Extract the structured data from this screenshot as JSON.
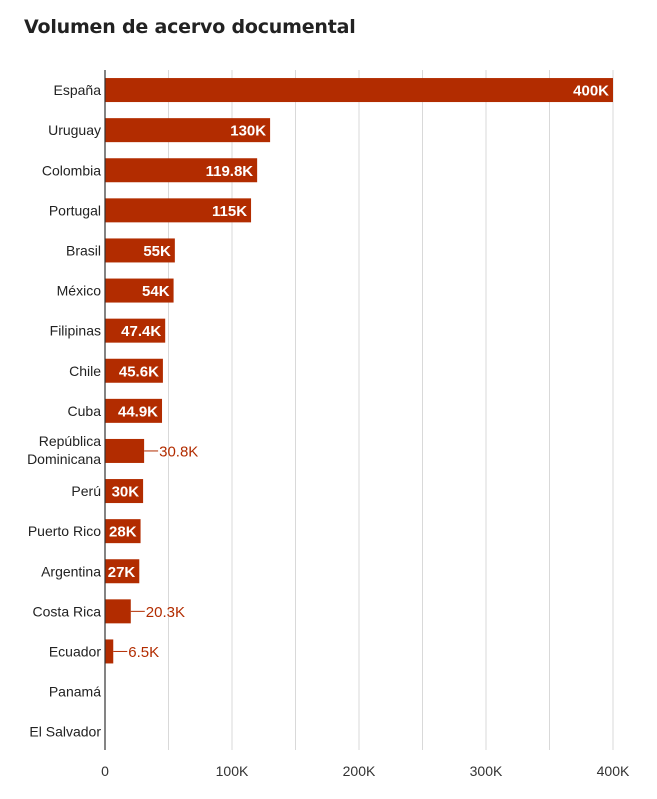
{
  "chart_data": {
    "type": "bar",
    "orientation": "horizontal",
    "title": "Volumen de acervo documental",
    "color": "#b22c00",
    "categories": [
      "España",
      "Uruguay",
      "Colombia",
      "Portugal",
      "Brasil",
      "México",
      "Filipinas",
      "Chile",
      "Cuba",
      "República Dominicana",
      "Perú",
      "Puerto Rico",
      "Argentina",
      "Costa Rica",
      "Ecuador",
      "Panamá",
      "El Salvador"
    ],
    "values": [
      400000,
      130000,
      119800,
      115000,
      55000,
      54000,
      47400,
      45600,
      44900,
      30800,
      30000,
      28000,
      27000,
      20300,
      6500,
      0,
      0
    ],
    "value_labels": [
      "400K",
      "130K",
      "119.8K",
      "115K",
      "55K",
      "54K",
      "47.4K",
      "45.6K",
      "44.9K",
      "30.8K",
      "30K",
      "28K",
      "27K",
      "20.3K",
      "6.5K",
      "",
      ""
    ],
    "xlim": [
      0,
      400000
    ],
    "xticks": [
      0,
      100000,
      200000,
      300000,
      400000
    ],
    "xtick_labels": [
      "0",
      "100K",
      "200K",
      "300K",
      "400K"
    ],
    "grid": true
  }
}
